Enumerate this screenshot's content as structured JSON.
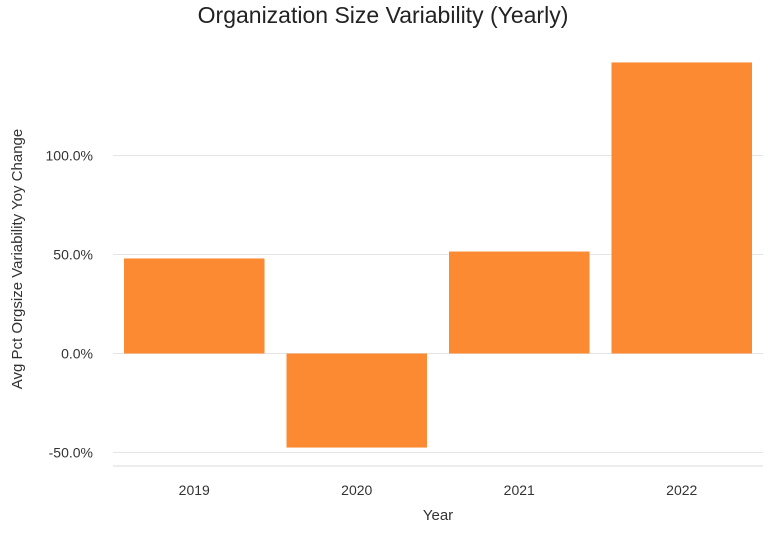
{
  "chart_data": {
    "type": "bar",
    "title": "Organization Size Variability (Yearly)",
    "xlabel": "Year",
    "ylabel": "Avg Pct Orgsize Variability Yoy Change",
    "categories": [
      "2019",
      "2020",
      "2021",
      "2022"
    ],
    "values": [
      48,
      -47.5,
      51.5,
      147
    ],
    "ylim": [
      -55,
      155
    ],
    "yticks": [
      -50,
      0,
      50,
      100
    ],
    "ytick_labels": [
      "-50.0%",
      "0.0%",
      "50.0%",
      "100.0%"
    ],
    "grid": true,
    "legend": "none",
    "bar_color": "#fb8a33",
    "grid_color": "#e5e5e5"
  }
}
